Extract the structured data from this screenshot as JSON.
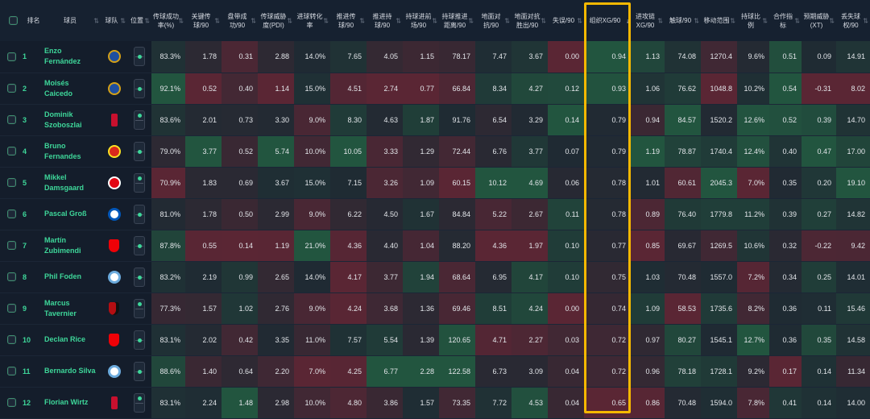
{
  "headers": [
    "排名",
    "球员",
    "球队",
    "位置",
    "传球成功率(%)",
    "关键传球/90",
    "盘带成功/90",
    "传球威胁度(PDI)",
    "进球转化率",
    "推进传球/90",
    "推进持球/90",
    "持球进前场/90",
    "持球推进距离/90",
    "地面对抗/90",
    "地面对抗胜出/90",
    "失误/90",
    "组织XG/90",
    "进攻链XG/90",
    "触球/90",
    "移动范围",
    "持球比例",
    "合作指标",
    "预期威胁(XT)",
    "丢失球权/90"
  ],
  "sort_active_icon": "↓",
  "sort_icon": "⇅",
  "players": [
    {
      "rank": "1",
      "name": "Enzo Fernández",
      "team": "chelsea",
      "pos": "mid",
      "stats": [
        "83.3%",
        "1.78",
        "0.31",
        "2.88",
        "14.0%",
        "7.65",
        "4.05",
        "1.15",
        "78.17",
        "7.47",
        "3.67",
        "0.00",
        "0.94",
        "1.13",
        "74.08",
        "1270.4",
        "9.6%",
        "0.51",
        "0.09",
        "14.91"
      ]
    },
    {
      "rank": "2",
      "name": "Moisés Caicedo",
      "team": "chelsea",
      "pos": "mid",
      "stats": [
        "92.1%",
        "0.52",
        "0.40",
        "1.14",
        "15.0%",
        "4.51",
        "2.74",
        "0.77",
        "66.84",
        "8.34",
        "4.27",
        "0.12",
        "0.93",
        "1.06",
        "76.62",
        "1048.8",
        "10.2%",
        "0.54",
        "-0.31",
        "8.02"
      ]
    },
    {
      "rank": "3",
      "name": "Dominik Szoboszlai",
      "team": "liverpool",
      "pos": "att",
      "stats": [
        "83.6%",
        "2.01",
        "0.73",
        "3.30",
        "9.0%",
        "8.30",
        "4.63",
        "1.87",
        "91.76",
        "6.54",
        "3.29",
        "0.14",
        "0.79",
        "0.94",
        "84.57",
        "1520.2",
        "12.6%",
        "0.52",
        "0.39",
        "14.70"
      ]
    },
    {
      "rank": "4",
      "name": "Bruno Fernandes",
      "team": "manutd",
      "pos": "mid",
      "stats": [
        "79.0%",
        "3.77",
        "0.52",
        "5.74",
        "10.0%",
        "10.05",
        "3.33",
        "1.29",
        "72.44",
        "6.76",
        "3.77",
        "0.07",
        "0.79",
        "1.19",
        "78.87",
        "1740.4",
        "12.4%",
        "0.40",
        "0.47",
        "17.00"
      ]
    },
    {
      "rank": "5",
      "name": "Mikkel Damsgaard",
      "team": "brentford",
      "pos": "att",
      "stats": [
        "70.9%",
        "1.83",
        "0.69",
        "3.67",
        "15.0%",
        "7.15",
        "3.26",
        "1.09",
        "60.15",
        "10.12",
        "4.69",
        "0.06",
        "0.78",
        "1.01",
        "60.61",
        "2045.3",
        "7.0%",
        "0.35",
        "0.20",
        "19.10"
      ]
    },
    {
      "rank": "6",
      "name": "Pascal Groß",
      "team": "brighton",
      "pos": "mid",
      "stats": [
        "81.0%",
        "1.78",
        "0.50",
        "2.99",
        "9.0%",
        "6.22",
        "4.50",
        "1.67",
        "84.84",
        "5.22",
        "2.67",
        "0.11",
        "0.78",
        "0.89",
        "76.40",
        "1779.8",
        "11.2%",
        "0.39",
        "0.27",
        "14.82"
      ]
    },
    {
      "rank": "7",
      "name": "Martín Zubimendi",
      "team": "arsenal",
      "pos": "mid",
      "stats": [
        "87.8%",
        "0.55",
        "0.14",
        "1.19",
        "21.0%",
        "4.36",
        "4.40",
        "1.04",
        "88.20",
        "4.36",
        "1.97",
        "0.10",
        "0.77",
        "0.85",
        "69.67",
        "1269.5",
        "10.6%",
        "0.32",
        "-0.22",
        "9.42"
      ]
    },
    {
      "rank": "8",
      "name": "Phil Foden",
      "team": "mancity",
      "pos": "mid",
      "stats": [
        "83.2%",
        "2.19",
        "0.99",
        "2.65",
        "14.0%",
        "4.17",
        "3.77",
        "1.94",
        "68.64",
        "6.95",
        "4.17",
        "0.10",
        "0.75",
        "1.03",
        "70.48",
        "1557.0",
        "7.2%",
        "0.34",
        "0.25",
        "14.01"
      ]
    },
    {
      "rank": "9",
      "name": "Marcus Tavernier",
      "team": "bournemouth",
      "pos": "att",
      "stats": [
        "77.3%",
        "1.57",
        "1.02",
        "2.76",
        "9.0%",
        "4.24",
        "3.68",
        "1.36",
        "69.46",
        "8.51",
        "4.24",
        "0.00",
        "0.74",
        "1.09",
        "58.53",
        "1735.6",
        "8.2%",
        "0.36",
        "0.11",
        "15.46"
      ]
    },
    {
      "rank": "10",
      "name": "Declan Rice",
      "team": "arsenal",
      "pos": "mid",
      "stats": [
        "83.1%",
        "2.02",
        "0.42",
        "3.35",
        "11.0%",
        "7.57",
        "5.54",
        "1.39",
        "120.65",
        "4.71",
        "2.27",
        "0.03",
        "0.72",
        "0.97",
        "80.27",
        "1545.1",
        "12.7%",
        "0.36",
        "0.35",
        "14.58"
      ]
    },
    {
      "rank": "11",
      "name": "Bernardo Silva",
      "team": "mancity",
      "pos": "mid",
      "stats": [
        "88.6%",
        "1.40",
        "0.64",
        "2.20",
        "7.0%",
        "4.25",
        "6.77",
        "2.28",
        "122.58",
        "6.73",
        "3.09",
        "0.04",
        "0.72",
        "0.96",
        "78.18",
        "1728.1",
        "9.2%",
        "0.17",
        "0.14",
        "11.34"
      ]
    },
    {
      "rank": "12",
      "name": "Florian Wirtz",
      "team": "liverpool",
      "pos": "att",
      "stats": [
        "83.1%",
        "2.24",
        "1.48",
        "2.98",
        "10.0%",
        "4.80",
        "3.86",
        "1.57",
        "73.35",
        "7.72",
        "4.53",
        "0.04",
        "0.65",
        "0.86",
        "70.48",
        "1594.0",
        "7.8%",
        "0.41",
        "0.14",
        "14.00"
      ]
    }
  ],
  "team_colors": {
    "chelsea": "#1f4fa0",
    "liverpool": "#c8102e",
    "manutd": "#da291c",
    "brentford": "#e30613",
    "brighton": "#0057b8",
    "arsenal": "#ef0107",
    "mancity": "#6cabdd",
    "bournemouth": "#b50e12"
  },
  "heat": {
    "high": "#22553f",
    "low": "#5a2634",
    "mid": "#1f2a33"
  }
}
